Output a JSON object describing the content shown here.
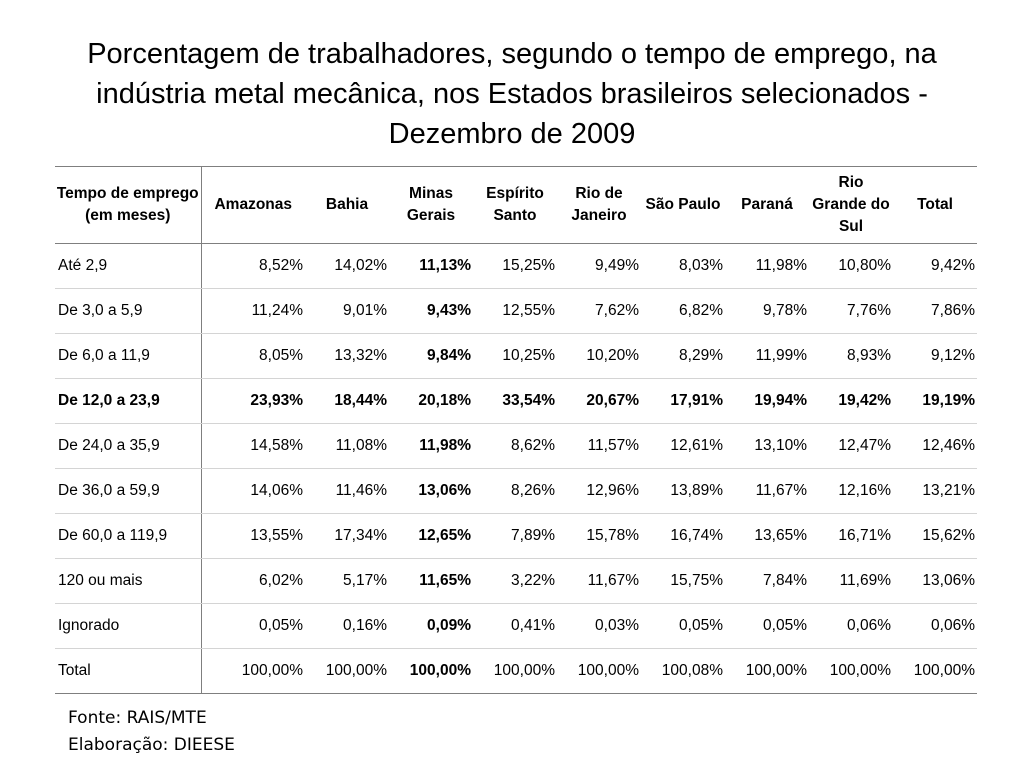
{
  "title": "Porcentagem de trabalhadores, segundo o tempo de emprego, na indústria metal mecânica, nos Estados brasileiros selecionados - Dezembro de 2009",
  "table": {
    "headers": [
      "Tempo de emprego (em meses)",
      "Amazonas",
      "Bahia",
      "Minas Gerais",
      "Espírito Santo",
      "Rio de Janeiro",
      "São Paulo",
      "Paraná",
      "Rio Grande do Sul",
      "Total"
    ],
    "rows": [
      [
        "Até 2,9",
        "8,52%",
        "14,02%",
        "11,13%",
        "15,25%",
        "9,49%",
        "8,03%",
        "11,98%",
        "10,80%",
        "9,42%"
      ],
      [
        "De 3,0 a 5,9",
        "11,24%",
        "9,01%",
        "9,43%",
        "12,55%",
        "7,62%",
        "6,82%",
        "9,78%",
        "7,76%",
        "7,86%"
      ],
      [
        "De 6,0 a 11,9",
        "8,05%",
        "13,32%",
        "9,84%",
        "10,25%",
        "10,20%",
        "8,29%",
        "11,99%",
        "8,93%",
        "9,12%"
      ],
      [
        "De 12,0 a 23,9",
        "23,93%",
        "18,44%",
        "20,18%",
        "33,54%",
        "20,67%",
        "17,91%",
        "19,94%",
        "19,42%",
        "19,19%"
      ],
      [
        "De 24,0 a 35,9",
        "14,58%",
        "11,08%",
        "11,98%",
        "8,62%",
        "11,57%",
        "12,61%",
        "13,10%",
        "12,47%",
        "12,46%"
      ],
      [
        "De 36,0 a 59,9",
        "14,06%",
        "11,46%",
        "13,06%",
        "8,26%",
        "12,96%",
        "13,89%",
        "11,67%",
        "12,16%",
        "13,21%"
      ],
      [
        "De 60,0 a 119,9",
        "13,55%",
        "17,34%",
        "12,65%",
        "7,89%",
        "15,78%",
        "16,74%",
        "13,65%",
        "16,71%",
        "15,62%"
      ],
      [
        "120 ou mais",
        "6,02%",
        "5,17%",
        "11,65%",
        "3,22%",
        "11,67%",
        "15,75%",
        "7,84%",
        "11,69%",
        "13,06%"
      ],
      [
        "Ignorado",
        "0,05%",
        "0,16%",
        "0,09%",
        "0,41%",
        "0,03%",
        "0,05%",
        "0,05%",
        "0,06%",
        "0,06%"
      ],
      [
        "Total",
        "100,00%",
        "100,00%",
        "100,00%",
        "100,00%",
        "100,00%",
        "100,08%",
        "100,00%",
        "100,00%",
        "100,00%"
      ]
    ],
    "bold_row_index": 3,
    "bold_column_index": 3
  },
  "footer": {
    "source": "Fonte: RAIS/MTE",
    "elaboration": "Elaboração: DIEESE"
  }
}
